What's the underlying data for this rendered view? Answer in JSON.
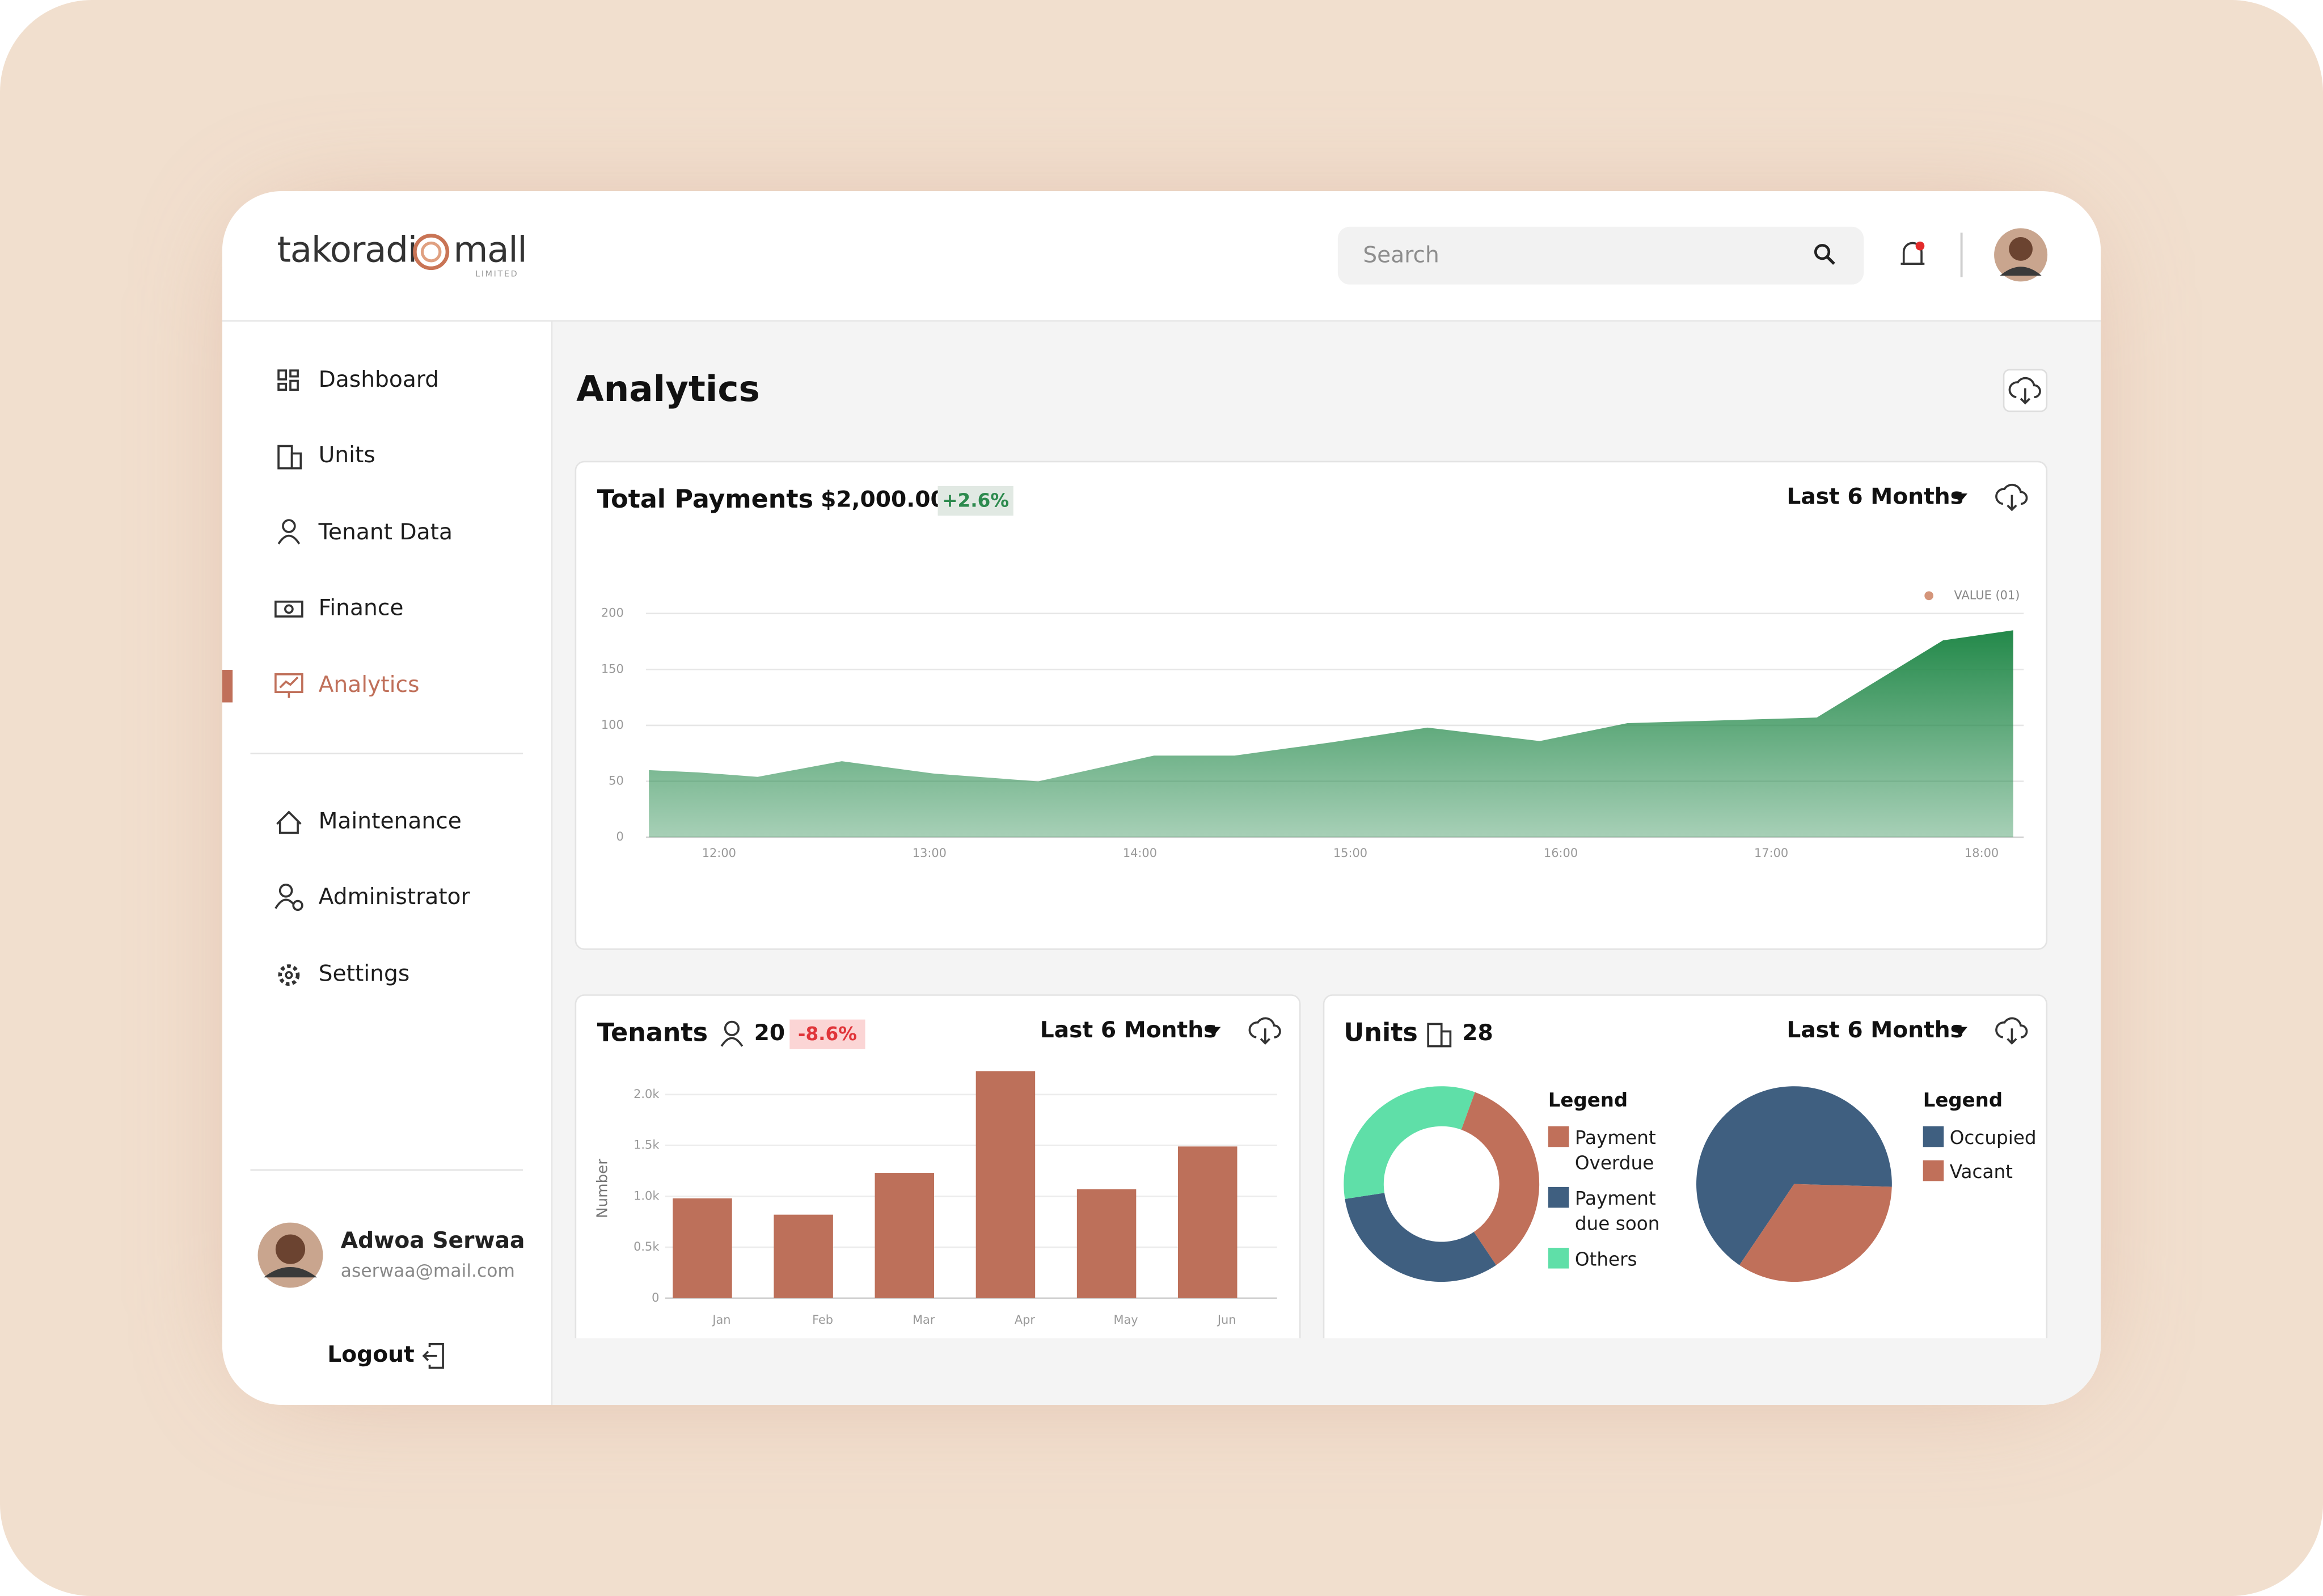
{
  "header": {
    "logo": "takoradi",
    "logo_suffix": "mall",
    "logo_sub": "LIMITED",
    "search_placeholder": "Search"
  },
  "sidebar": {
    "nav": [
      "Dashboard",
      "Units",
      "Tenant Data",
      "Finance",
      "Analytics"
    ],
    "nav_secondary": [
      "Maintenance",
      "Administrator",
      "Settings"
    ],
    "user": {
      "name": "Adwoa Serwaa",
      "email": "aserwaa@mail.com"
    },
    "logout": "Logout"
  },
  "page_title": "Analytics",
  "payments": {
    "title": "Total Payments",
    "amount": "$2,000.00",
    "change": "+2.6%",
    "period": "Last 6 Months",
    "chart": {
      "type": "area",
      "x": [
        "11:40",
        "11:54",
        "12:11",
        "12:35",
        "13:01",
        "13:31",
        "14:04",
        "14:27",
        "14:55",
        "15:22",
        "15:54",
        "16:19",
        "17:13",
        "17:49",
        "18:09"
      ],
      "series": [
        {
          "name": "VALUE (01)",
          "color": "#23894a",
          "values": [
            60,
            58,
            54,
            68,
            57,
            50,
            73,
            73,
            85,
            98,
            86,
            102,
            107,
            176,
            185
          ]
        }
      ],
      "legend_color": "#d4957a",
      "xlim": [
        "11:40",
        "18:12"
      ],
      "xticks": [
        "12:00",
        "13:00",
        "14:00",
        "15:00",
        "16:00",
        "17:00",
        "18:00"
      ],
      "ylim": [
        0,
        200
      ],
      "yticks": [
        0,
        50,
        100,
        150,
        200
      ],
      "grid": true
    }
  },
  "tenants": {
    "title": "Tenants",
    "count": 20,
    "change": "-8.6%",
    "period": "Last 6 Months",
    "chart": {
      "type": "bar",
      "y_label": "Number",
      "categories": [
        "Jan",
        "Feb",
        "Mar",
        "Apr",
        "May",
        "Jun"
      ],
      "values": [
        980,
        820,
        1230,
        2230,
        1070,
        1490
      ],
      "color": "#bd705a",
      "ylim": [
        0,
        2300
      ],
      "yticks": [
        0,
        {
          "value": 500,
          "label": "0.5k"
        },
        {
          "value": 1000,
          "label": "1.0k"
        },
        {
          "value": 1500,
          "label": "1.5k"
        },
        {
          "value": 2000,
          "label": "2.0k"
        }
      ],
      "grid": true
    }
  },
  "units": {
    "title": "Units",
    "count": 28,
    "period": "Last 6 Months",
    "charts": [
      {
        "type": "donut",
        "legend_title": "Legend",
        "categories": [
          "Payment Overdue",
          "Payment due soon",
          "Others"
        ],
        "values": [
          35,
          32,
          33
        ],
        "colors": [
          "#c0705a",
          "#3f5f80",
          "#5fdfa8"
        ]
      },
      {
        "type": "pie",
        "legend_title": "Legend",
        "categories": [
          "Occupied",
          "Vacant"
        ],
        "values": [
          66,
          34
        ],
        "colors": [
          "#3f5f80",
          "#c0705a"
        ]
      }
    ]
  }
}
